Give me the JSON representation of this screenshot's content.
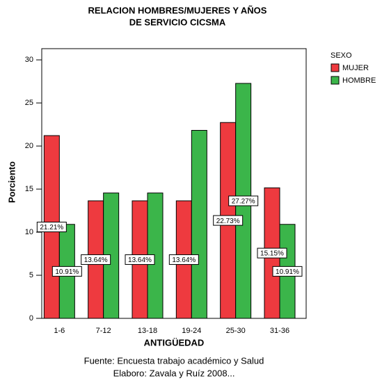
{
  "chart_data": {
    "type": "bar",
    "title": [
      "RELACION HOMBRES/MUJERES Y AÑOS",
      "DE SERVICIO CICSMA"
    ],
    "x_label": "ANTIGÜEDAD",
    "y_label": "Porciento",
    "legend_title": "SEXO",
    "legend": "right",
    "footer": [
      "Fuente: Encuesta trabajo académico y Salud",
      "Elaboro: Zavala y Ruíz 2008..."
    ],
    "categories": [
      "1-6",
      "7-12",
      "13-18",
      "19-24",
      "25-30",
      "31-36"
    ],
    "series": [
      {
        "name": "MUJER",
        "color": "#ee3a3f",
        "values": [
          21.21,
          13.64,
          13.64,
          13.64,
          22.73,
          15.15
        ],
        "value_labels": [
          "21.21%",
          "13.64%",
          "13.64%",
          "13.64%",
          "22.73%",
          "15.15%"
        ]
      },
      {
        "name": "HOMBRE",
        "color": "#3bb54a",
        "values": [
          10.91,
          14.55,
          14.55,
          21.82,
          27.27,
          10.91
        ],
        "value_labels": [
          "10.91%",
          null,
          null,
          null,
          "27.27%",
          "10.91%"
        ]
      }
    ],
    "ylim": [
      0,
      31.3
    ],
    "yticks": [
      0,
      5,
      10,
      15,
      20,
      25,
      30
    ],
    "grid": false
  }
}
